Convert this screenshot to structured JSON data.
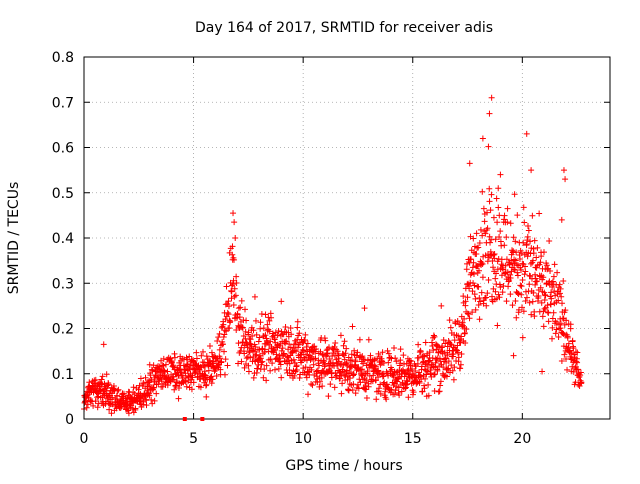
{
  "chart_data": {
    "type": "scatter",
    "title": "Day 164 of 2017, SRMTID for receiver adis",
    "xlabel": "GPS time / hours",
    "ylabel": "SRMTID / TECUs",
    "xlim": [
      0,
      24
    ],
    "ylim": [
      0,
      0.8
    ],
    "x_ticks": [
      0,
      5,
      10,
      15,
      20
    ],
    "x_tick_labels": [
      "0",
      "5",
      "10",
      "15",
      "20"
    ],
    "y_ticks": [
      0,
      0.1,
      0.2,
      0.3,
      0.4,
      0.5,
      0.6,
      0.7,
      0.8
    ],
    "y_tick_labels": [
      "0",
      "0.1",
      "0.2",
      "0.3",
      "0.4",
      "0.5",
      "0.6",
      "0.7",
      "0.8"
    ],
    "grid": true,
    "marker": "+",
    "marker_color": "#ff0000",
    "x_axis_markers": [
      4.6,
      5.4
    ],
    "series": [
      {
        "name": "SRMTID",
        "envelope": [
          {
            "x": 0.0,
            "base": 0.045,
            "spread": 0.015
          },
          {
            "x": 0.5,
            "base": 0.06,
            "spread": 0.03
          },
          {
            "x": 1.0,
            "base": 0.055,
            "spread": 0.03
          },
          {
            "x": 1.5,
            "base": 0.04,
            "spread": 0.02
          },
          {
            "x": 2.0,
            "base": 0.035,
            "spread": 0.02
          },
          {
            "x": 2.5,
            "base": 0.05,
            "spread": 0.02
          },
          {
            "x": 3.0,
            "base": 0.07,
            "spread": 0.025
          },
          {
            "x": 3.5,
            "base": 0.1,
            "spread": 0.03
          },
          {
            "x": 4.0,
            "base": 0.1,
            "spread": 0.03
          },
          {
            "x": 4.5,
            "base": 0.1,
            "spread": 0.03
          },
          {
            "x": 5.0,
            "base": 0.11,
            "spread": 0.03
          },
          {
            "x": 5.5,
            "base": 0.1,
            "spread": 0.03
          },
          {
            "x": 6.0,
            "base": 0.12,
            "spread": 0.03
          },
          {
            "x": 6.5,
            "base": 0.2,
            "spread": 0.08
          },
          {
            "x": 6.8,
            "base": 0.33,
            "spread": 0.07
          },
          {
            "x": 7.0,
            "base": 0.2,
            "spread": 0.06
          },
          {
            "x": 7.5,
            "base": 0.16,
            "spread": 0.05
          },
          {
            "x": 8.0,
            "base": 0.15,
            "spread": 0.05
          },
          {
            "x": 9.0,
            "base": 0.16,
            "spread": 0.05
          },
          {
            "x": 10.0,
            "base": 0.14,
            "spread": 0.05
          },
          {
            "x": 11.0,
            "base": 0.12,
            "spread": 0.05
          },
          {
            "x": 12.0,
            "base": 0.12,
            "spread": 0.05
          },
          {
            "x": 13.0,
            "base": 0.1,
            "spread": 0.04
          },
          {
            "x": 14.0,
            "base": 0.1,
            "spread": 0.04
          },
          {
            "x": 15.0,
            "base": 0.1,
            "spread": 0.04
          },
          {
            "x": 16.0,
            "base": 0.13,
            "spread": 0.05
          },
          {
            "x": 16.8,
            "base": 0.14,
            "spread": 0.05
          },
          {
            "x": 17.3,
            "base": 0.2,
            "spread": 0.06
          },
          {
            "x": 17.8,
            "base": 0.35,
            "spread": 0.08
          },
          {
            "x": 18.5,
            "base": 0.4,
            "spread": 0.12
          },
          {
            "x": 19.0,
            "base": 0.36,
            "spread": 0.1
          },
          {
            "x": 19.5,
            "base": 0.35,
            "spread": 0.1
          },
          {
            "x": 20.0,
            "base": 0.34,
            "spread": 0.1
          },
          {
            "x": 20.5,
            "base": 0.32,
            "spread": 0.1
          },
          {
            "x": 21.0,
            "base": 0.28,
            "spread": 0.08
          },
          {
            "x": 21.5,
            "base": 0.25,
            "spread": 0.07
          },
          {
            "x": 22.0,
            "base": 0.2,
            "spread": 0.06
          },
          {
            "x": 22.3,
            "base": 0.13,
            "spread": 0.04
          },
          {
            "x": 22.7,
            "base": 0.08,
            "spread": 0.02
          }
        ],
        "outliers": [
          {
            "x": 0.9,
            "y": 0.165
          },
          {
            "x": 3.0,
            "y": 0.12
          },
          {
            "x": 6.8,
            "y": 0.455
          },
          {
            "x": 6.85,
            "y": 0.435
          },
          {
            "x": 6.9,
            "y": 0.4
          },
          {
            "x": 18.6,
            "y": 0.71
          },
          {
            "x": 18.5,
            "y": 0.675
          },
          {
            "x": 18.2,
            "y": 0.62
          },
          {
            "x": 20.2,
            "y": 0.63
          },
          {
            "x": 20.4,
            "y": 0.55
          },
          {
            "x": 21.9,
            "y": 0.55
          },
          {
            "x": 21.95,
            "y": 0.53
          },
          {
            "x": 17.6,
            "y": 0.565
          },
          {
            "x": 19.0,
            "y": 0.54
          },
          {
            "x": 18.9,
            "y": 0.51
          },
          {
            "x": 21.8,
            "y": 0.44
          },
          {
            "x": 16.3,
            "y": 0.25
          },
          {
            "x": 12.8,
            "y": 0.245
          },
          {
            "x": 9.0,
            "y": 0.26
          },
          {
            "x": 7.8,
            "y": 0.27
          },
          {
            "x": 19.6,
            "y": 0.14
          },
          {
            "x": 20.9,
            "y": 0.105
          }
        ]
      }
    ]
  }
}
